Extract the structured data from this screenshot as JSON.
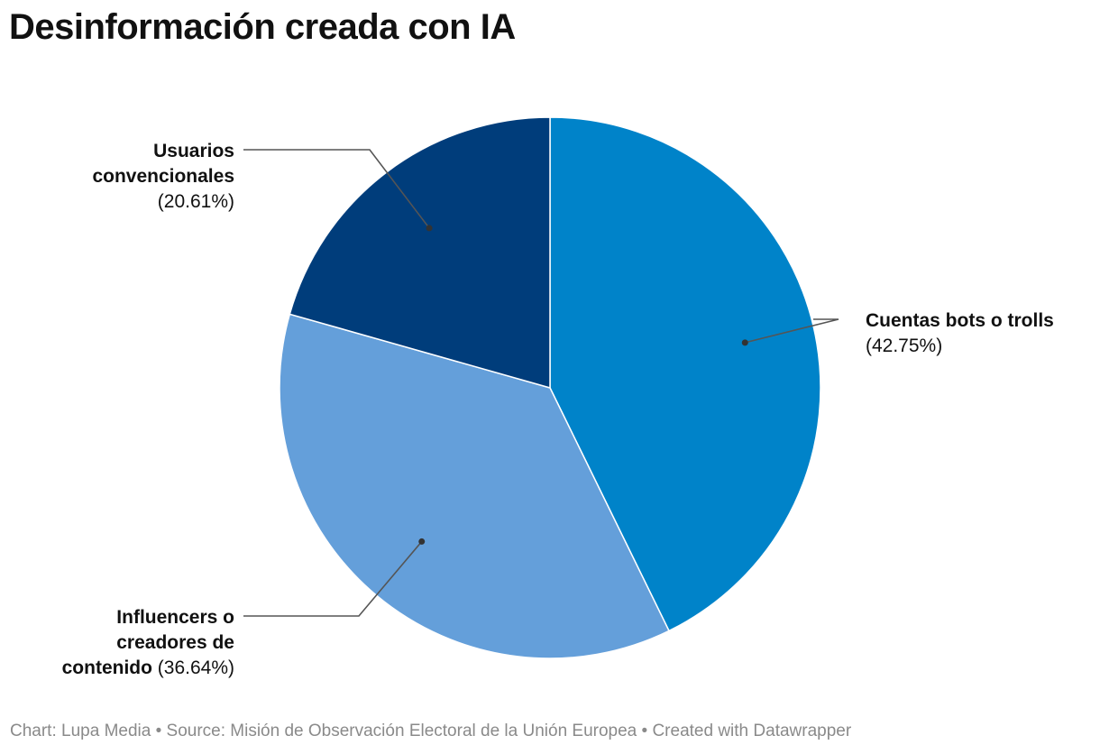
{
  "chart_data": {
    "type": "pie",
    "title": "Desinformación creada con IA",
    "categories": [
      "Cuentas bots o trolls",
      "Influencers o creadores de contenido",
      "Usuarios convencionales"
    ],
    "values": [
      42.75,
      36.64,
      20.61
    ],
    "value_labels": [
      "(42.75%)",
      "(36.64%)",
      "(20.61%)"
    ],
    "colors": [
      "#0083C9",
      "#649FDA",
      "#003D7B"
    ],
    "label_lines": [
      [
        "Cuentas bots o trolls"
      ],
      [
        "Influencers o",
        "creadores de",
        "contenido"
      ],
      [
        "Usuarios",
        "convencionales"
      ]
    ],
    "label_align": [
      "right",
      "left",
      "left"
    ],
    "value_inline": [
      false,
      true,
      false
    ]
  },
  "footer": {
    "text": "Chart: Lupa Media • Source: Misión de Observación Electoral de la Unión Europea • Created with Datawrapper"
  }
}
